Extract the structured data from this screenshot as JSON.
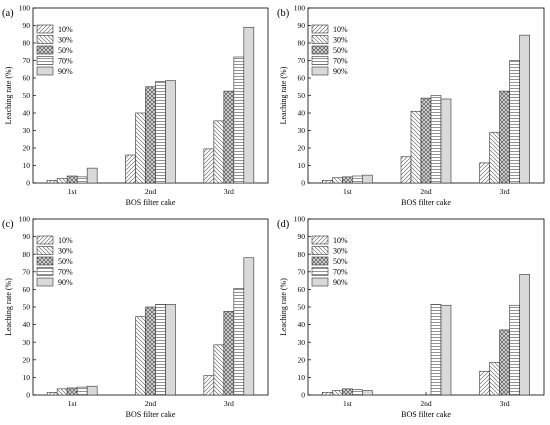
{
  "chart_data": [
    {
      "type": "bar",
      "panel_label": "(a)",
      "categories": [
        "1st",
        "2nd",
        "3rd"
      ],
      "xlabel": "BOS filter cake",
      "ylabel": "Leaching rate (%)",
      "ylim": [
        0,
        100
      ],
      "yticks": [
        0,
        10,
        20,
        30,
        40,
        50,
        60,
        70,
        80,
        90,
        100
      ],
      "legend_position": "top-left",
      "series": [
        {
          "name": "10%",
          "values": [
            1.5,
            16,
            19.5
          ]
        },
        {
          "name": "30%",
          "values": [
            2.5,
            40,
            35.5
          ]
        },
        {
          "name": "50%",
          "values": [
            4,
            55,
            52.5
          ]
        },
        {
          "name": "70%",
          "values": [
            3.5,
            58,
            72
          ]
        },
        {
          "name": "90%",
          "values": [
            8.5,
            58.5,
            89
          ]
        }
      ]
    },
    {
      "type": "bar",
      "panel_label": "(b)",
      "categories": [
        "1st",
        "2nd",
        "3rd"
      ],
      "xlabel": "BOS filter cake",
      "ylabel": "Leaching rate (%)",
      "ylim": [
        0,
        100
      ],
      "yticks": [
        0,
        10,
        20,
        30,
        40,
        50,
        60,
        70,
        80,
        90,
        100
      ],
      "legend_position": "top-left",
      "series": [
        {
          "name": "10%",
          "values": [
            1.5,
            15,
            11.5
          ]
        },
        {
          "name": "30%",
          "values": [
            3,
            41,
            29
          ]
        },
        {
          "name": "50%",
          "values": [
            3.5,
            48.5,
            52.5
          ]
        },
        {
          "name": "70%",
          "values": [
            4,
            50,
            70
          ]
        },
        {
          "name": "90%",
          "values": [
            4.5,
            48,
            84.5
          ]
        }
      ]
    },
    {
      "type": "bar",
      "panel_label": "(c)",
      "categories": [
        "1st",
        "2nd",
        "3rd"
      ],
      "xlabel": "BOS filter cake",
      "ylabel": "Leaching rate (%)",
      "ylim": [
        0,
        100
      ],
      "yticks": [
        0,
        10,
        20,
        30,
        40,
        50,
        60,
        70,
        80,
        90,
        100
      ],
      "legend_position": "top-left",
      "series": [
        {
          "name": "10%",
          "values": [
            1.5,
            0,
            11
          ]
        },
        {
          "name": "30%",
          "values": [
            3.5,
            44.5,
            28.5
          ]
        },
        {
          "name": "50%",
          "values": [
            4,
            50,
            47.5
          ]
        },
        {
          "name": "70%",
          "values": [
            4.5,
            51.5,
            60.5
          ]
        },
        {
          "name": "90%",
          "values": [
            5,
            51.5,
            78
          ]
        }
      ]
    },
    {
      "type": "bar",
      "panel_label": "(d)",
      "categories": [
        "1st",
        "2nd",
        "3rd"
      ],
      "xlabel": "BOS filter cake",
      "ylabel": "Leaching rate (%)",
      "ylim": [
        0,
        100
      ],
      "yticks": [
        0,
        10,
        20,
        30,
        40,
        50,
        60,
        70,
        80,
        90,
        100
      ],
      "legend_position": "top-left",
      "series": [
        {
          "name": "10%",
          "values": [
            1.5,
            0,
            13.5
          ]
        },
        {
          "name": "30%",
          "values": [
            2.5,
            0,
            18.5
          ]
        },
        {
          "name": "50%",
          "values": [
            3.5,
            0,
            37
          ]
        },
        {
          "name": "70%",
          "values": [
            3,
            51.5,
            51
          ]
        },
        {
          "name": "90%",
          "values": [
            2.5,
            51,
            68.5
          ]
        }
      ]
    }
  ]
}
